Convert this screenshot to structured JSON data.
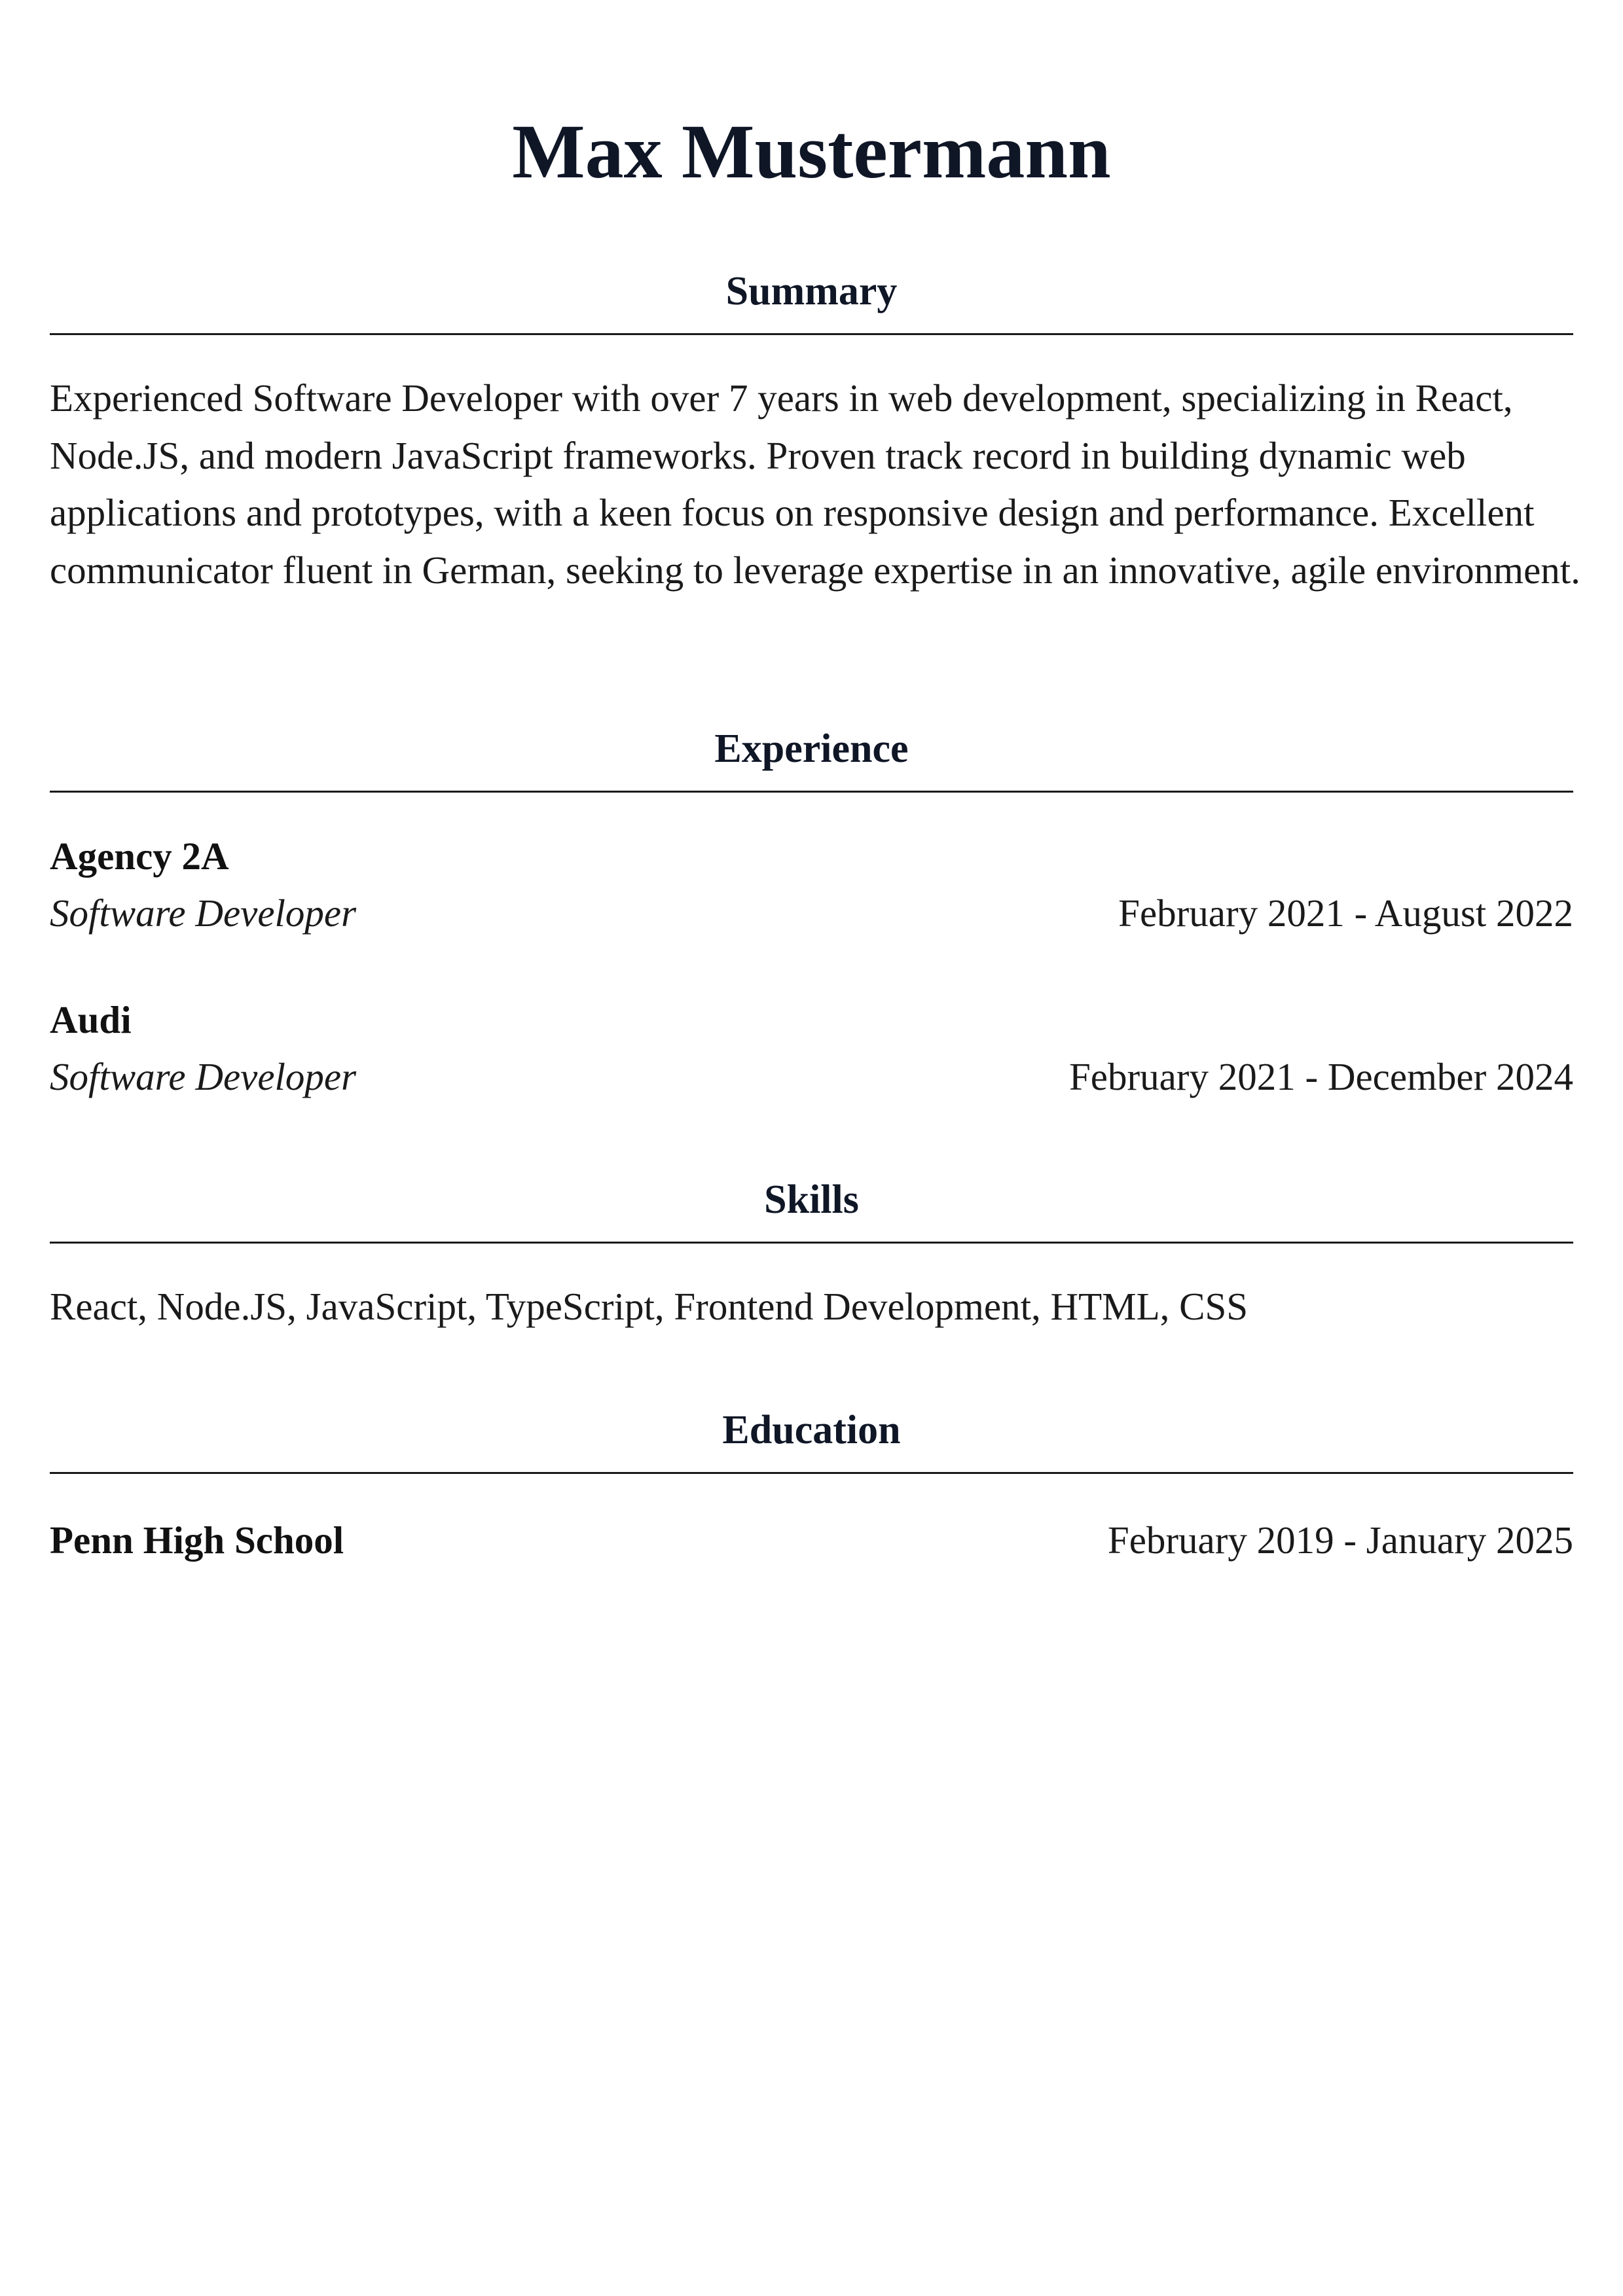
{
  "header": {
    "name": "Max Mustermann"
  },
  "summary": {
    "title": "Summary",
    "text": "Experienced Software Developer with over 7 years in web development, specializing in React, Node.JS, and modern JavaScript frameworks. Proven track record in building dynamic web applications and prototypes, with a keen focus on responsive design and performance. Excellent communicator fluent in German, seeking to leverage expertise in an innovative, agile environment."
  },
  "experience": {
    "title": "Experience",
    "items": [
      {
        "company": "Agency 2A",
        "role": "Software Developer",
        "dates": "February 2021 - August 2022"
      },
      {
        "company": "Audi",
        "role": "Software Developer",
        "dates": "February 2021 - December 2024"
      }
    ]
  },
  "skills": {
    "title": "Skills",
    "text": "React, Node.JS, JavaScript, TypeScript, Frontend Development, HTML, CSS"
  },
  "education": {
    "title": "Education",
    "items": [
      {
        "school": "Penn High School",
        "dates": "February 2019 - January 2025"
      }
    ]
  }
}
